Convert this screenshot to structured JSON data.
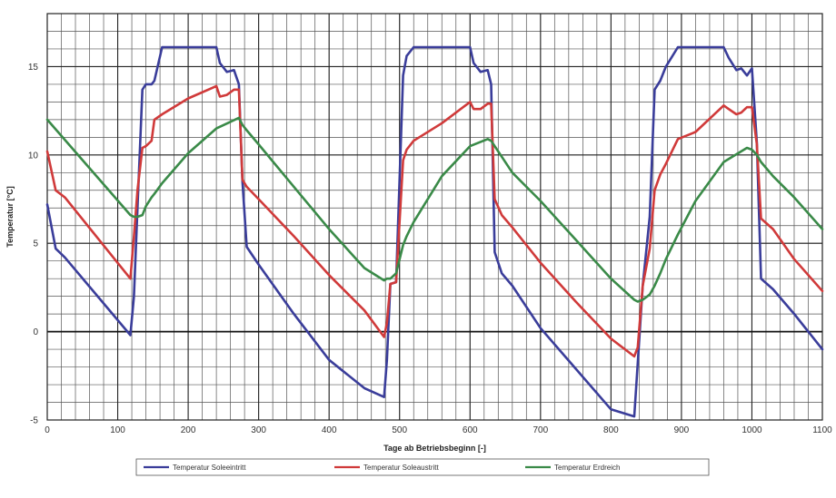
{
  "chart_data": {
    "type": "line",
    "xlabel": "Tage ab Betriebsbeginn [-]",
    "ylabel": "Temperatur [°C]",
    "xlim": [
      0,
      1100
    ],
    "ylim": [
      -5,
      18
    ],
    "xticks": [
      0,
      100,
      200,
      300,
      400,
      500,
      600,
      700,
      800,
      900,
      1000,
      1100
    ],
    "yticks": [
      -5,
      0,
      5,
      10,
      15
    ],
    "grid": true,
    "legend_position": "bottom",
    "series": [
      {
        "name": "Temperatur Soleeintritt",
        "color": "#3a3d9a",
        "x": [
          0,
          12,
          25,
          118,
          123,
          128,
          135,
          140,
          148,
          152,
          163,
          200,
          240,
          245,
          255,
          265,
          272,
          277,
          283,
          300,
          350,
          400,
          450,
          478,
          482,
          487,
          495,
          505,
          510,
          520,
          560,
          600,
          605,
          615,
          625,
          630,
          635,
          645,
          660,
          700,
          750,
          800,
          833,
          838,
          845,
          855,
          862,
          870,
          878,
          895,
          920,
          960,
          967,
          978,
          985,
          993,
          1000,
          1007,
          1013,
          1030,
          1060,
          1100
        ],
        "y": [
          7.2,
          4.7,
          4.2,
          -0.2,
          2,
          7,
          13.7,
          14,
          14,
          14.2,
          16.1,
          16.1,
          16.1,
          15.2,
          14.7,
          14.8,
          14,
          8.5,
          4.8,
          3.8,
          1,
          -1.6,
          -3.2,
          -3.7,
          -1.6,
          2.7,
          2.8,
          14.5,
          15.6,
          16.1,
          16.1,
          16.1,
          15.2,
          14.7,
          14.8,
          14,
          4.5,
          3.3,
          2.6,
          0.2,
          -2.1,
          -4.4,
          -4.8,
          -1.8,
          2.6,
          6.5,
          13.7,
          14.2,
          15,
          16.1,
          16.1,
          16.1,
          15.5,
          14.8,
          14.9,
          14.5,
          14.9,
          10.7,
          3,
          2.4,
          1,
          -1
        ]
      },
      {
        "name": "Temperatur Soleaustritt",
        "color": "#d03a3a",
        "x": [
          0,
          12,
          25,
          118,
          123,
          128,
          135,
          140,
          148,
          152,
          163,
          200,
          240,
          245,
          255,
          265,
          272,
          277,
          283,
          300,
          350,
          400,
          450,
          478,
          482,
          487,
          495,
          505,
          510,
          520,
          560,
          600,
          605,
          615,
          625,
          630,
          635,
          645,
          660,
          700,
          750,
          800,
          833,
          838,
          845,
          855,
          862,
          870,
          878,
          895,
          920,
          960,
          967,
          978,
          985,
          993,
          1000,
          1007,
          1013,
          1030,
          1060,
          1100
        ],
        "y": [
          10.2,
          8,
          7.6,
          3,
          5.4,
          8,
          10.4,
          10.5,
          10.8,
          12,
          12.3,
          13.2,
          13.9,
          13.3,
          13.4,
          13.7,
          13.7,
          8.6,
          8.2,
          7.5,
          5.4,
          3.2,
          1.2,
          -0.3,
          0.5,
          2.7,
          2.8,
          9.7,
          10.3,
          10.8,
          11.8,
          13,
          12.6,
          12.6,
          12.9,
          12.9,
          7.5,
          6.6,
          5.9,
          3.9,
          1.7,
          -0.4,
          -1.4,
          -0.9,
          2.6,
          4.7,
          8,
          8.9,
          9.5,
          10.9,
          11.3,
          12.8,
          12.6,
          12.3,
          12.4,
          12.7,
          12.7,
          10.6,
          6.4,
          5.8,
          4.1,
          2.3
        ]
      },
      {
        "name": "Temperatur Erdreich",
        "color": "#3a8a48",
        "x": [
          0,
          118,
          123,
          128,
          135,
          140,
          148,
          152,
          163,
          200,
          240,
          272,
          277,
          283,
          300,
          350,
          400,
          450,
          478,
          482,
          487,
          495,
          505,
          510,
          520,
          560,
          600,
          625,
          630,
          635,
          645,
          660,
          700,
          750,
          800,
          833,
          838,
          845,
          855,
          862,
          870,
          878,
          895,
          920,
          960,
          993,
          1000,
          1007,
          1013,
          1030,
          1060,
          1100
        ],
        "y": [
          12,
          6.6,
          6.5,
          6.5,
          6.6,
          7.1,
          7.6,
          7.8,
          8.4,
          10.1,
          11.5,
          12.1,
          11.7,
          11.4,
          10.6,
          8.2,
          5.8,
          3.6,
          2.9,
          3,
          3,
          3.3,
          4.9,
          5.4,
          6.2,
          8.8,
          10.5,
          10.9,
          10.8,
          10.5,
          9.9,
          9,
          7.4,
          5.2,
          3,
          1.8,
          1.7,
          1.8,
          2.1,
          2.6,
          3.3,
          4.1,
          5.5,
          7.4,
          9.6,
          10.4,
          10.3,
          10,
          9.6,
          8.8,
          7.6,
          5.8
        ]
      }
    ]
  }
}
